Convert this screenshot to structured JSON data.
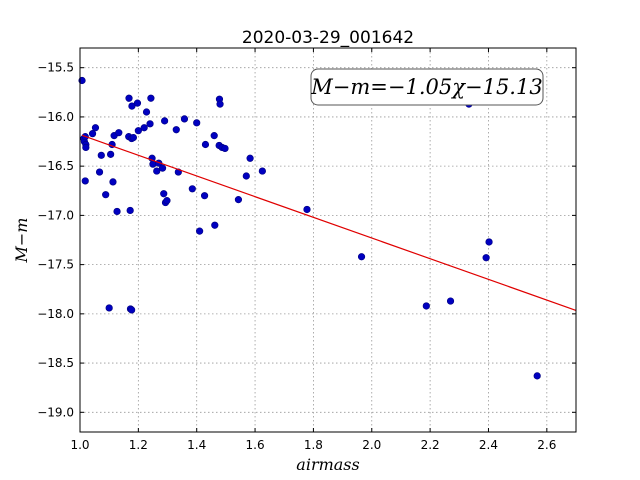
{
  "chart_data": {
    "type": "scatter",
    "title": "2020-03-29_001642",
    "xlabel": "airmass",
    "ylabel": "M−m",
    "annotation": "M−m=−1.05χ−15.13",
    "xlim": [
      1.0,
      2.7
    ],
    "ylim": [
      -19.2,
      -15.3
    ],
    "grid": true,
    "x_ticks": [
      1.0,
      1.2,
      1.4,
      1.6,
      1.8,
      2.0,
      2.2,
      2.4,
      2.6
    ],
    "x_tick_labels": [
      "1.0",
      "1.2",
      "1.4",
      "1.6",
      "1.8",
      "2.0",
      "2.2",
      "2.4",
      "2.6"
    ],
    "y_ticks": [
      -15.5,
      -16.0,
      -16.5,
      -17.0,
      -17.5,
      -18.0,
      -18.5,
      -19.0
    ],
    "y_tick_labels": [
      "−15.5",
      "−16.0",
      "−16.5",
      "−17.0",
      "−17.5",
      "−18.0",
      "−18.5",
      "−19.0"
    ],
    "colors": {
      "points": "#0000c0",
      "point_edge": "#000080",
      "fit_line": "#e00000",
      "grid": "#999999"
    },
    "points": [
      [
        1.007,
        -15.63
      ],
      [
        1.013,
        -16.22
      ],
      [
        1.015,
        -16.25
      ],
      [
        1.018,
        -16.2
      ],
      [
        1.02,
        -16.28
      ],
      [
        1.02,
        -16.31
      ],
      [
        1.018,
        -16.65
      ],
      [
        1.043,
        -16.17
      ],
      [
        1.053,
        -16.11
      ],
      [
        1.067,
        -16.56
      ],
      [
        1.073,
        -16.39
      ],
      [
        1.088,
        -16.79
      ],
      [
        1.1,
        -17.94
      ],
      [
        1.105,
        -16.38
      ],
      [
        1.11,
        -16.28
      ],
      [
        1.113,
        -16.66
      ],
      [
        1.117,
        -16.19
      ],
      [
        1.127,
        -16.96
      ],
      [
        1.133,
        -16.16
      ],
      [
        1.167,
        -16.2
      ],
      [
        1.168,
        -15.81
      ],
      [
        1.172,
        -16.95
      ],
      [
        1.173,
        -17.95
      ],
      [
        1.177,
        -17.96
      ],
      [
        1.177,
        -16.22
      ],
      [
        1.178,
        -15.89
      ],
      [
        1.183,
        -16.21
      ],
      [
        1.197,
        -15.86
      ],
      [
        1.2,
        -16.14
      ],
      [
        1.22,
        -16.11
      ],
      [
        1.228,
        -15.95
      ],
      [
        1.24,
        -16.07
      ],
      [
        1.243,
        -15.81
      ],
      [
        1.247,
        -16.42
      ],
      [
        1.25,
        -16.48
      ],
      [
        1.263,
        -16.55
      ],
      [
        1.27,
        -16.47
      ],
      [
        1.283,
        -16.52
      ],
      [
        1.287,
        -16.78
      ],
      [
        1.29,
        -16.04
      ],
      [
        1.293,
        -16.87
      ],
      [
        1.298,
        -16.85
      ],
      [
        1.33,
        -16.13
      ],
      [
        1.337,
        -16.56
      ],
      [
        1.358,
        -16.02
      ],
      [
        1.385,
        -16.73
      ],
      [
        1.4,
        -16.06
      ],
      [
        1.41,
        -17.16
      ],
      [
        1.427,
        -16.8
      ],
      [
        1.43,
        -16.28
      ],
      [
        1.46,
        -16.19
      ],
      [
        1.462,
        -17.1
      ],
      [
        1.477,
        -16.29
      ],
      [
        1.478,
        -15.82
      ],
      [
        1.48,
        -15.87
      ],
      [
        1.487,
        -16.31
      ],
      [
        1.497,
        -16.32
      ],
      [
        1.543,
        -16.84
      ],
      [
        1.57,
        -16.6
      ],
      [
        1.583,
        -16.42
      ],
      [
        1.625,
        -16.55
      ],
      [
        1.778,
        -16.94
      ],
      [
        1.965,
        -17.42
      ],
      [
        2.187,
        -17.92
      ],
      [
        2.27,
        -17.87
      ],
      [
        2.333,
        -15.87
      ],
      [
        2.392,
        -17.43
      ],
      [
        2.402,
        -17.27
      ],
      [
        2.567,
        -18.63
      ]
    ],
    "fit": {
      "slope": -1.05,
      "intercept": -15.13
    }
  }
}
